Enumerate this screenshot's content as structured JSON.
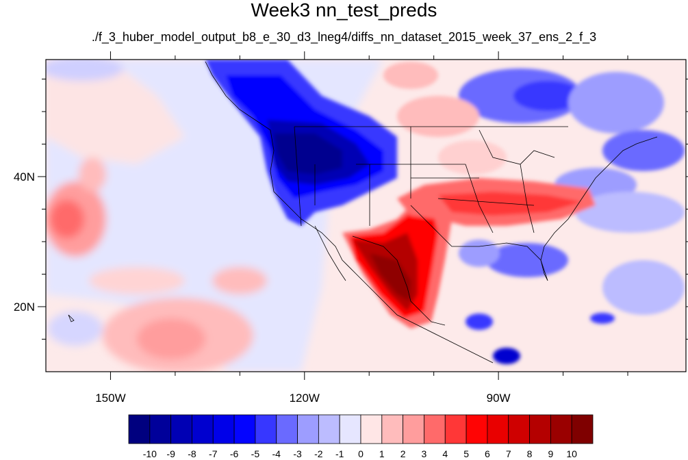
{
  "title": "Week3 nn_test_preds",
  "subtitle": "./f_3_huber_model_output_b8_e_30_d3_lneg4/diffs_nn_dataset_2015_week_37_ens_2_f_3",
  "map": {
    "lon_range": [
      -160,
      -61
    ],
    "lat_range": [
      10,
      58
    ],
    "lat_labels": [
      {
        "value": 40,
        "label": "40N"
      },
      {
        "value": 20,
        "label": "20N"
      }
    ],
    "lon_labels": [
      {
        "value": -150,
        "label": "150W"
      },
      {
        "value": -120,
        "label": "120W"
      },
      {
        "value": -90,
        "label": "90W"
      }
    ]
  },
  "colorbar": {
    "labels": [
      "-10",
      "-9",
      "-8",
      "-7",
      "-6",
      "-5",
      "-4",
      "-3",
      "-2",
      "-1",
      "0",
      "1",
      "2",
      "3",
      "4",
      "5",
      "6",
      "7",
      "8",
      "9",
      "10"
    ],
    "colors": [
      "#00007f",
      "#00009a",
      "#0000b4",
      "#0000cf",
      "#0000e9",
      "#0404ff",
      "#3737ff",
      "#6a6aff",
      "#9d9dff",
      "#bcbcff",
      "#e6e6ff",
      "#ffe6e6",
      "#ffbcbc",
      "#ff9d9d",
      "#ff6a6a",
      "#ff3737",
      "#ff0404",
      "#e90000",
      "#cf0000",
      "#b40000",
      "#9a0000",
      "#7f0000"
    ]
  }
}
